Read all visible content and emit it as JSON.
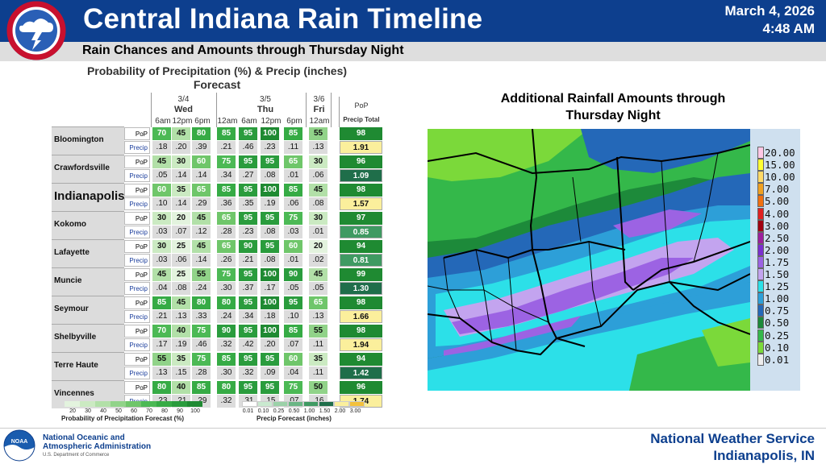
{
  "header": {
    "title": "Central Indiana Rain Timeline",
    "date": "March 4, 2026",
    "time": "4:48 AM",
    "subtitle": "Rain Chances and Amounts through Thursday Night",
    "logo_text": "NATIONAL WEATHER SERVICE"
  },
  "table": {
    "title_line1": "Probability of Precipitation (%) & Precip (inches)",
    "title_line2": "Forecast",
    "days": [
      {
        "date": "3/4",
        "name": "Wed"
      },
      {
        "date": "3/5",
        "name": "Thu"
      },
      {
        "date": "3/6",
        "name": "Fri"
      }
    ],
    "times": [
      "6am",
      "12pm",
      "6pm",
      "12am",
      "6am",
      "12pm",
      "6pm",
      "12am"
    ],
    "pop_header": "PoP",
    "total_header": "Precip Total",
    "pop_label": "PoP",
    "precip_label": "Precip",
    "cities": [
      {
        "name": "Bloomington",
        "pop": [
          "70",
          "45",
          "80",
          "85",
          "95",
          "100",
          "85",
          "55"
        ],
        "precip": [
          ".18",
          ".20",
          ".39",
          ".21",
          ".46",
          ".23",
          ".11",
          ".13"
        ],
        "pop_total": "98",
        "precip_total": "1.91"
      },
      {
        "name": "Crawfordsville",
        "pop": [
          "45",
          "30",
          "60",
          "75",
          "95",
          "95",
          "65",
          "30"
        ],
        "precip": [
          ".05",
          ".14",
          ".14",
          ".34",
          ".27",
          ".08",
          ".01",
          ".06"
        ],
        "pop_total": "96",
        "precip_total": "1.09"
      },
      {
        "name": "Indianapolis",
        "pop": [
          "60",
          "35",
          "65",
          "85",
          "95",
          "100",
          "85",
          "45"
        ],
        "precip": [
          ".10",
          ".14",
          ".29",
          ".36",
          ".35",
          ".19",
          ".06",
          ".08"
        ],
        "pop_total": "98",
        "precip_total": "1.57"
      },
      {
        "name": "Kokomo",
        "pop": [
          "30",
          "20",
          "45",
          "65",
          "95",
          "95",
          "75",
          "30"
        ],
        "precip": [
          ".03",
          ".07",
          ".12",
          ".28",
          ".23",
          ".08",
          ".03",
          ".01"
        ],
        "pop_total": "97",
        "precip_total": "0.85"
      },
      {
        "name": "Lafayette",
        "pop": [
          "30",
          "25",
          "45",
          "65",
          "90",
          "95",
          "60",
          "20"
        ],
        "precip": [
          ".03",
          ".06",
          ".14",
          ".26",
          ".21",
          ".08",
          ".01",
          ".02"
        ],
        "pop_total": "94",
        "precip_total": "0.81"
      },
      {
        "name": "Muncie",
        "pop": [
          "45",
          "25",
          "55",
          "75",
          "95",
          "100",
          "90",
          "45"
        ],
        "precip": [
          ".04",
          ".08",
          ".24",
          ".30",
          ".37",
          ".17",
          ".05",
          ".05"
        ],
        "pop_total": "99",
        "precip_total": "1.30"
      },
      {
        "name": "Seymour",
        "pop": [
          "85",
          "45",
          "80",
          "80",
          "95",
          "100",
          "95",
          "65"
        ],
        "precip": [
          ".21",
          ".13",
          ".33",
          ".24",
          ".34",
          ".18",
          ".10",
          ".13"
        ],
        "pop_total": "98",
        "precip_total": "1.66"
      },
      {
        "name": "Shelbyville",
        "pop": [
          "70",
          "40",
          "75",
          "90",
          "95",
          "100",
          "85",
          "55"
        ],
        "precip": [
          ".17",
          ".19",
          ".46",
          ".32",
          ".42",
          ".20",
          ".07",
          ".11"
        ],
        "pop_total": "98",
        "precip_total": "1.94"
      },
      {
        "name": "Terre Haute",
        "pop": [
          "55",
          "35",
          "75",
          "85",
          "95",
          "95",
          "60",
          "35"
        ],
        "precip": [
          ".13",
          ".15",
          ".28",
          ".30",
          ".32",
          ".09",
          ".04",
          ".11"
        ],
        "pop_total": "94",
        "precip_total": "1.42"
      },
      {
        "name": "Vincennes",
        "pop": [
          "80",
          "40",
          "85",
          "80",
          "95",
          "95",
          "75",
          "50"
        ],
        "precip": [
          ".23",
          ".21",
          ".29",
          ".32",
          ".31",
          ".15",
          ".07",
          ".16"
        ],
        "pop_total": "96",
        "precip_total": "1.74"
      }
    ],
    "pop_legend": {
      "labels": [
        "20",
        "30",
        "40",
        "50",
        "60",
        "70",
        "80",
        "90",
        "100"
      ],
      "title": "Probability of Precipitation Forecast (%)"
    },
    "precip_legend": {
      "labels": [
        "0.01",
        "0.10",
        "0.25",
        "0.50",
        "1.00",
        "1.50",
        "2.00",
        "3.00"
      ],
      "title": "Precip Forecast (inches)"
    }
  },
  "map": {
    "title_line1": "Additional Rainfall Amounts through",
    "title_line2": "Thursday Night",
    "scale": [
      {
        "label": "20.00",
        "color": "#ffc8e6"
      },
      {
        "label": "15.00",
        "color": "#ffff33"
      },
      {
        "label": "10.00",
        "color": "#ffd966"
      },
      {
        "label": "7.00",
        "color": "#f0a020"
      },
      {
        "label": "5.00",
        "color": "#f07010"
      },
      {
        "label": "4.00",
        "color": "#e02020"
      },
      {
        "label": "3.00",
        "color": "#a00010"
      },
      {
        "label": "2.50",
        "color": "#9c1f9c"
      },
      {
        "label": "2.00",
        "color": "#7b2fcf"
      },
      {
        "label": "1.75",
        "color": "#9c63e3"
      },
      {
        "label": "1.50",
        "color": "#c3a4ef"
      },
      {
        "label": "1.25",
        "color": "#2ce0e8"
      },
      {
        "label": "1.00",
        "color": "#2d9fd8"
      },
      {
        "label": "0.75",
        "color": "#2468b8"
      },
      {
        "label": "0.50",
        "color": "#1d8a3a"
      },
      {
        "label": "0.25",
        "color": "#34b84a"
      },
      {
        "label": "0.10",
        "color": "#7bd93a"
      },
      {
        "label": "0.01",
        "color": "#eeeeee"
      }
    ]
  },
  "footer": {
    "noaa_line1": "National Oceanic and",
    "noaa_line2": "Atmospheric Administration",
    "noaa_sub": "U.S. Department of Commerce",
    "noaa_logo_text": "NOAA",
    "office_line1": "National Weather Service",
    "office_line2": "Indianapolis, IN"
  }
}
